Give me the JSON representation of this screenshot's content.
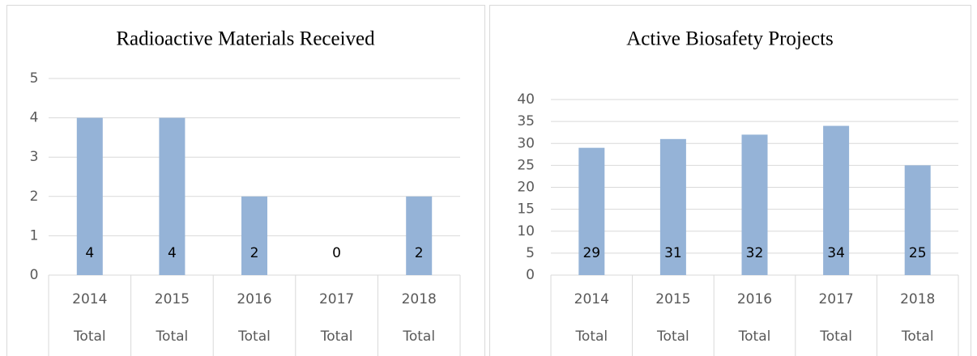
{
  "chart_data": [
    {
      "type": "bar",
      "title": "Radioactive Materials Received",
      "categories": [
        "2014",
        "2015",
        "2016",
        "2017",
        "2018"
      ],
      "subcategories": [
        "Total",
        "Total",
        "Total",
        "Total",
        "Total"
      ],
      "values": [
        4,
        4,
        2,
        0,
        2
      ],
      "color": "#95b3d7",
      "ylim": [
        0,
        5
      ],
      "yticks": [
        0,
        1,
        2,
        3,
        4,
        5
      ],
      "grid": true
    },
    {
      "type": "bar",
      "title": "Active Biosafety Projects",
      "categories": [
        "2014",
        "2015",
        "2016",
        "2017",
        "2018"
      ],
      "subcategories": [
        "Total",
        "Total",
        "Total",
        "Total",
        "Total"
      ],
      "values": [
        29,
        31,
        32,
        34,
        25
      ],
      "color": "#95b3d7",
      "ylim": [
        0,
        40
      ],
      "yticks": [
        0,
        5,
        10,
        15,
        20,
        25,
        30,
        35,
        40
      ],
      "grid": true
    }
  ]
}
